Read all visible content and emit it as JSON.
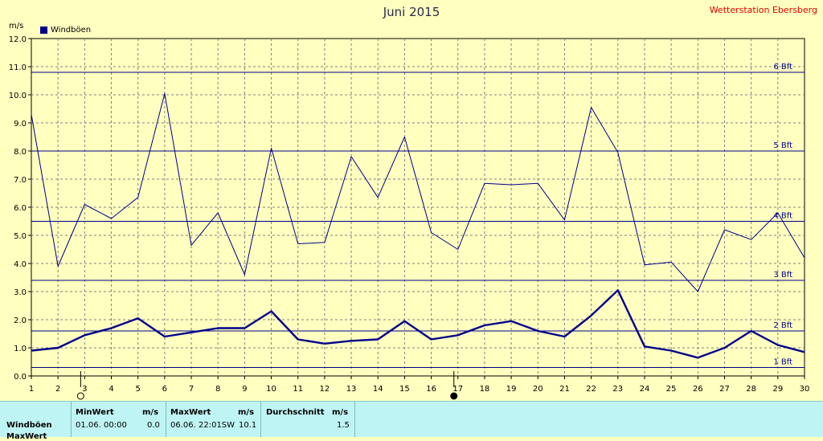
{
  "chart_data": {
    "type": "line",
    "title": "Juni 2015",
    "ylabel": "m/s",
    "ylim": [
      0,
      12
    ],
    "ytick_labels": [
      "0.0",
      "1.0",
      "2.0",
      "3.0",
      "4.0",
      "5.0",
      "6.0",
      "7.0",
      "8.0",
      "9.0",
      "10.0",
      "11.0",
      "12.0"
    ],
    "x": [
      1,
      2,
      3,
      4,
      5,
      6,
      7,
      8,
      9,
      10,
      11,
      12,
      13,
      14,
      15,
      16,
      17,
      18,
      19,
      20,
      21,
      22,
      23,
      24,
      25,
      26,
      27,
      28,
      29,
      30
    ],
    "grid": true,
    "legend_position": "top-left",
    "series": [
      {
        "name": "Windböen",
        "color": "#00008b",
        "values": [
          9.3,
          3.9,
          6.1,
          5.6,
          6.35,
          10.05,
          4.65,
          5.8,
          3.6,
          8.1,
          4.7,
          4.75,
          7.8,
          6.35,
          8.5,
          5.1,
          4.5,
          6.85,
          6.8,
          6.85,
          5.55,
          9.55,
          7.95,
          3.95,
          4.05,
          3.0,
          5.2,
          4.85,
          5.8,
          4.2
        ]
      },
      {
        "color": "#00008b",
        "values": [
          0.9,
          1.0,
          1.45,
          1.7,
          2.05,
          1.4,
          1.55,
          1.7,
          1.7,
          2.3,
          1.3,
          1.15,
          1.25,
          1.3,
          1.95,
          1.3,
          1.45,
          1.8,
          1.95,
          1.6,
          1.4,
          2.15,
          3.05,
          1.05,
          0.9,
          0.65,
          1.0,
          1.6,
          1.1,
          0.85
        ]
      }
    ],
    "reference_lines": [
      {
        "label": "6 Bft",
        "value": 10.8
      },
      {
        "label": "5 Bft",
        "value": 8.0
      },
      {
        "label": "4 Bft",
        "value": 5.5
      },
      {
        "label": "3 Bft",
        "value": 3.4
      },
      {
        "label": "2 Bft",
        "value": 1.6
      },
      {
        "label": "1 Bft",
        "value": 0.3
      }
    ],
    "markers": [
      {
        "x": 3,
        "symbol": "open-circle"
      },
      {
        "x": 17,
        "symbol": "filled-circle"
      }
    ]
  },
  "header": {
    "title": "Juni 2015",
    "station": "Wetterstation Ebersberg",
    "unit": "m/s",
    "legend_label": "Windböen",
    "legend_color": "#00008b"
  },
  "stats": {
    "min_header": "MinWert",
    "min_unit": "m/s",
    "max_header": "MaxWert",
    "max_unit": "m/s",
    "avg_header": "Durchschnitt",
    "avg_unit": "m/s",
    "row_label": "Windböen",
    "min_date": "01.06.  00:00",
    "min_value": "0.0",
    "max_date": "06.06.  22:01SW",
    "max_value": "10.1",
    "avg_value": "1.5",
    "next_row_label": "MaxWert"
  }
}
